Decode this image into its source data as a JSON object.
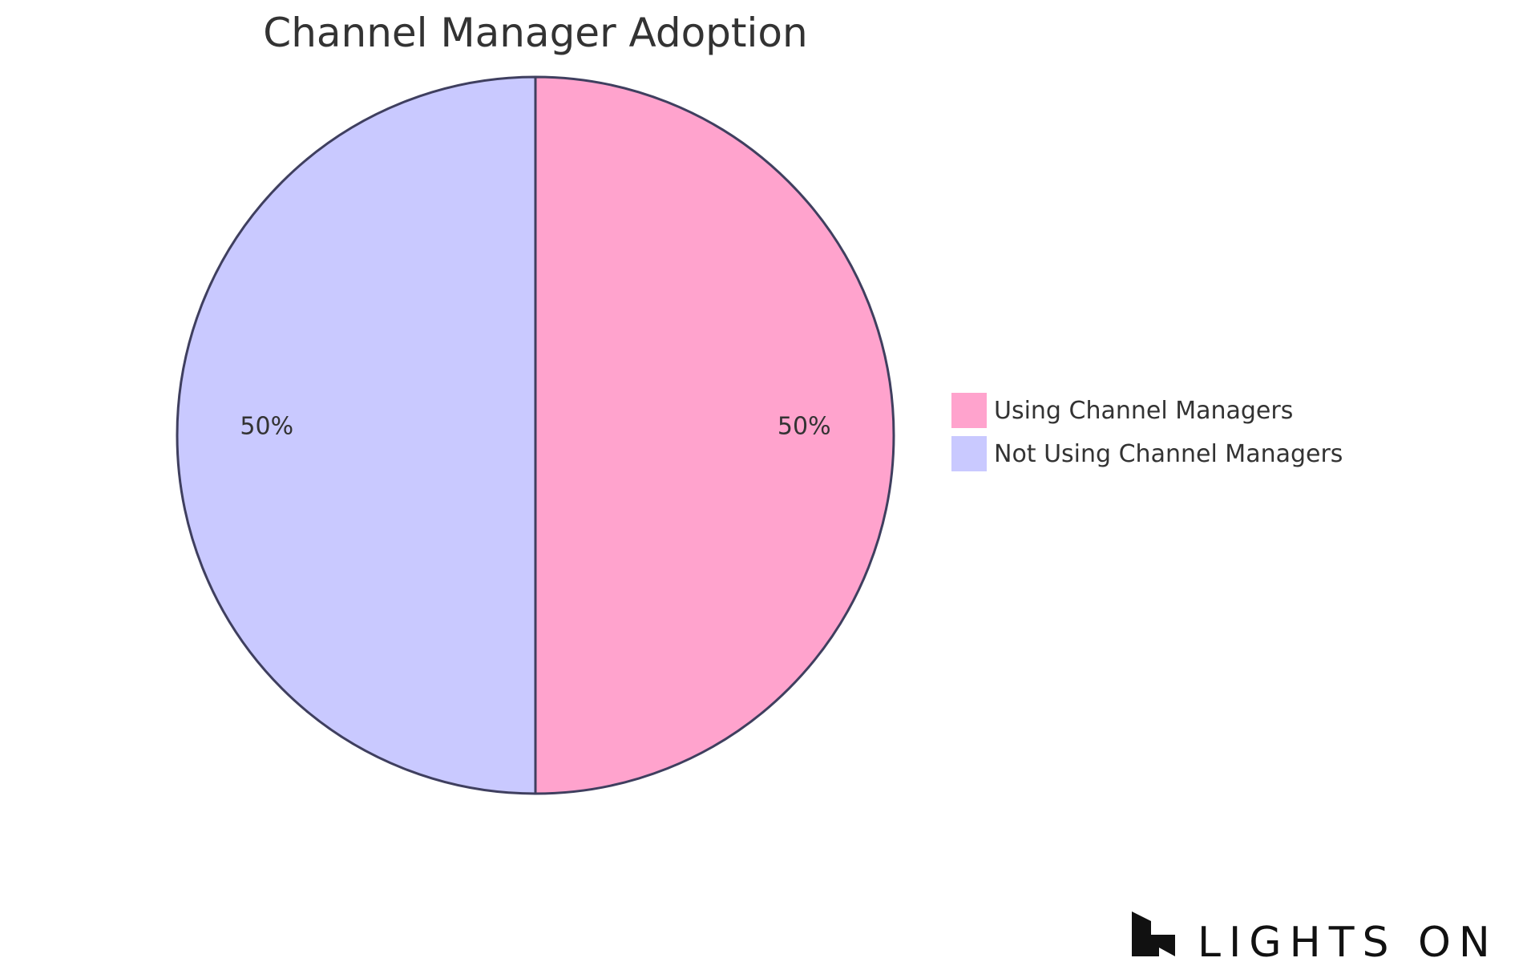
{
  "chart_data": {
    "type": "pie",
    "title": "Channel Manager Adoption",
    "slices": [
      {
        "label": "Using Channel Managers",
        "value": 50,
        "display": "50%",
        "color": "#FFA3CD"
      },
      {
        "label": "Not Using Channel Managers",
        "value": 50,
        "display": "50%",
        "color": "#C9C9FF"
      }
    ],
    "stroke_color": "#3F3F5F",
    "legend_position": "right"
  },
  "branding": {
    "logo_text": "LIGHTS ON",
    "logo_icon": "lights-on-logo-icon"
  }
}
